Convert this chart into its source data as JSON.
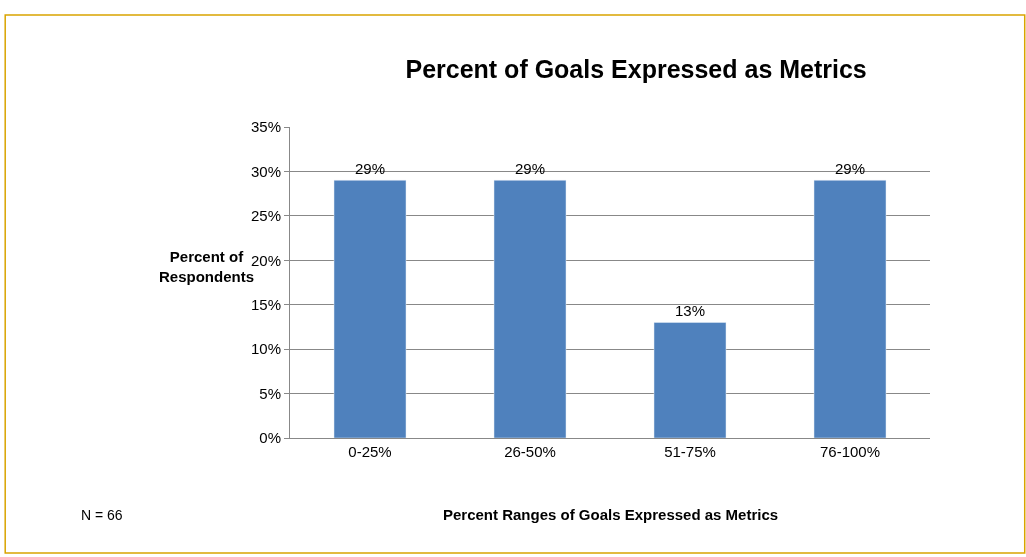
{
  "chart_data": {
    "type": "bar",
    "title": "Percent of Goals Expressed as Metrics",
    "xlabel": "Percent Ranges of Goals Expressed as Metrics",
    "ylabel": "Percent of\nRespondents",
    "categories": [
      "0-25%",
      "26-50%",
      "51-75%",
      "76-100%"
    ],
    "values": [
      29,
      29,
      13,
      29
    ],
    "color": "#4f81bd",
    "value_labels": [
      "29%",
      "29%",
      "13%",
      "29%"
    ],
    "ylim": [
      0,
      35
    ],
    "yticks": [
      {
        "value": 0,
        "label": "0%"
      },
      {
        "value": 5,
        "label": "5%"
      },
      {
        "value": 10,
        "label": "10%"
      },
      {
        "value": 15,
        "label": "15%"
      },
      {
        "value": 20,
        "label": "20%"
      },
      {
        "value": 25,
        "label": "25%"
      },
      {
        "value": 30,
        "label": "30%"
      },
      {
        "value": 35,
        "label": "35%"
      }
    ],
    "grid": "y",
    "legend": false,
    "annotations": [
      "N = 66"
    ]
  }
}
